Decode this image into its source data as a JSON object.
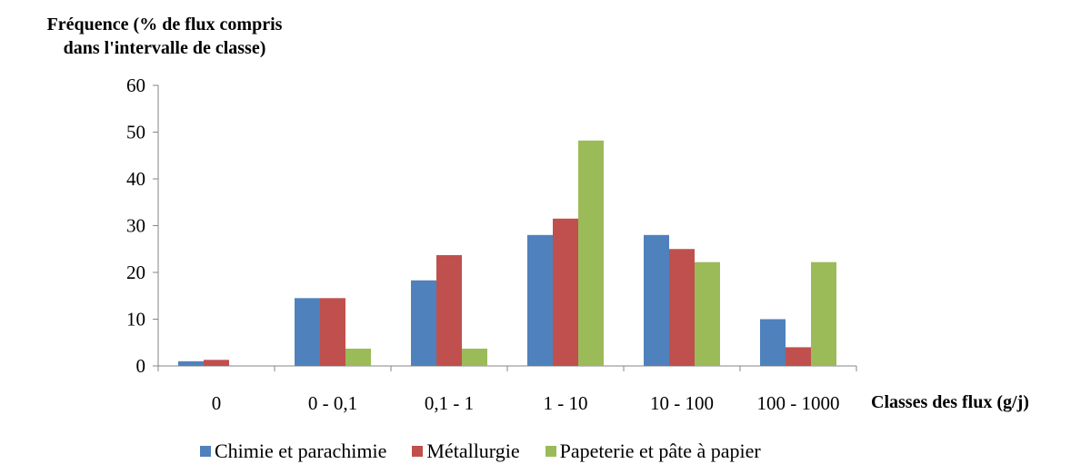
{
  "chart_data": {
    "type": "bar",
    "ylabel_line1": "Fréquence (% de flux compris",
    "ylabel_line2": "dans l'intervalle de classe)",
    "xlabel": "Classes des flux (g/j)",
    "categories": [
      "0",
      "0 - 0,1",
      "0,1 - 1",
      "1 - 10",
      "10 - 100",
      "100 - 1000"
    ],
    "ylim": [
      0,
      60
    ],
    "yticks": [
      0,
      10,
      20,
      30,
      40,
      50,
      60
    ],
    "grid": false,
    "legend_position": "bottom",
    "series": [
      {
        "name": "Chimie et parachimie",
        "color": "#4F81BD",
        "values": [
          1,
          14.5,
          18.3,
          28,
          28,
          10
        ]
      },
      {
        "name": "Métallurgie",
        "color": "#C0504D",
        "values": [
          1.3,
          14.5,
          23.7,
          31.5,
          25,
          4
        ]
      },
      {
        "name": "Papeterie et pâte à papier",
        "color": "#9BBB59",
        "values": [
          0,
          3.7,
          3.7,
          48.2,
          22.2,
          22.2
        ]
      }
    ]
  }
}
